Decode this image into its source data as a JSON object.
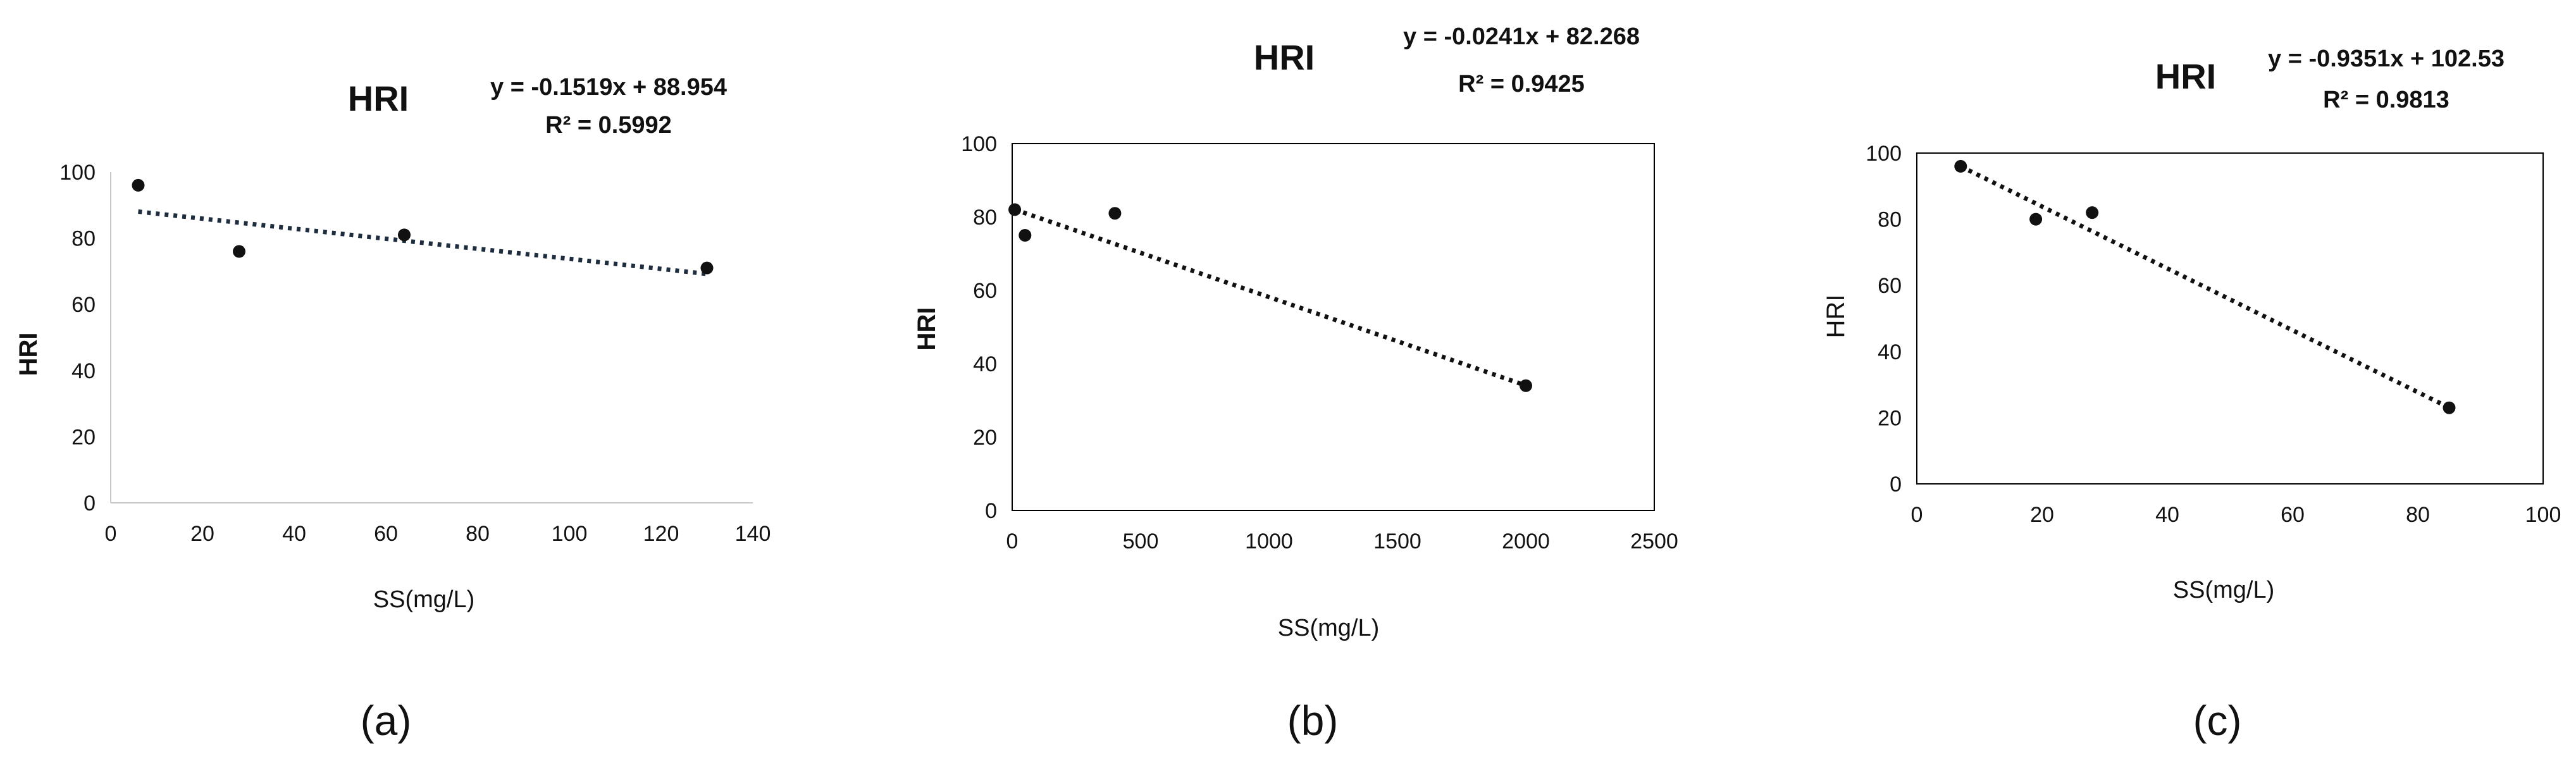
{
  "chart_data": [
    {
      "type": "scatter",
      "title": "HRI",
      "equation": "y = -0.1519x + 88.954",
      "r2": "R² = 0.5992",
      "xlabel": "SS(mg/L)",
      "ylabel": "HRI",
      "xlim": [
        0,
        140
      ],
      "ylim": [
        0,
        100
      ],
      "xticks": [
        0,
        20,
        40,
        60,
        80,
        100,
        120,
        140
      ],
      "yticks": [
        0,
        20,
        40,
        60,
        80,
        100
      ],
      "frame": false,
      "trendline": {
        "slope": -0.1519,
        "intercept": 88.954,
        "style": "dotted"
      },
      "points": [
        {
          "x": 6,
          "y": 96
        },
        {
          "x": 28,
          "y": 76
        },
        {
          "x": 64,
          "y": 81
        },
        {
          "x": 130,
          "y": 71
        }
      ],
      "panel_label": "(a)"
    },
    {
      "type": "scatter",
      "title": "HRI",
      "equation": "y = -0.0241x + 82.268",
      "r2": "R² = 0.9425",
      "xlabel": "SS(mg/L)",
      "ylabel": "HRI",
      "xlim": [
        0,
        2500
      ],
      "ylim": [
        0,
        100
      ],
      "xticks": [
        0,
        500,
        1000,
        1500,
        2000,
        2500
      ],
      "yticks": [
        0,
        20,
        40,
        60,
        80,
        100
      ],
      "frame": true,
      "trendline": {
        "slope": -0.0241,
        "intercept": 82.268,
        "style": "dotted"
      },
      "points": [
        {
          "x": 10,
          "y": 82
        },
        {
          "x": 50,
          "y": 75
        },
        {
          "x": 400,
          "y": 81
        },
        {
          "x": 2000,
          "y": 34
        }
      ],
      "panel_label": "(b)"
    },
    {
      "type": "scatter",
      "title": "HRI",
      "equation": "y = -0.9351x + 102.53",
      "r2": "R² = 0.9813",
      "xlabel": "SS(mg/L)",
      "ylabel": "HRI",
      "xlim": [
        0,
        100
      ],
      "ylim": [
        0,
        100
      ],
      "xticks": [
        0,
        20,
        40,
        60,
        80,
        100
      ],
      "yticks": [
        0,
        20,
        40,
        60,
        80,
        100
      ],
      "frame": true,
      "trendline": {
        "slope": -0.9351,
        "intercept": 102.53,
        "style": "dotted"
      },
      "points": [
        {
          "x": 7,
          "y": 96
        },
        {
          "x": 19,
          "y": 80
        },
        {
          "x": 28,
          "y": 82
        },
        {
          "x": 85,
          "y": 23
        }
      ],
      "panel_label": "(c)"
    }
  ],
  "colors": {
    "ink": "#111111",
    "trend_a": "#1e2d3d",
    "frame": "#000000"
  }
}
